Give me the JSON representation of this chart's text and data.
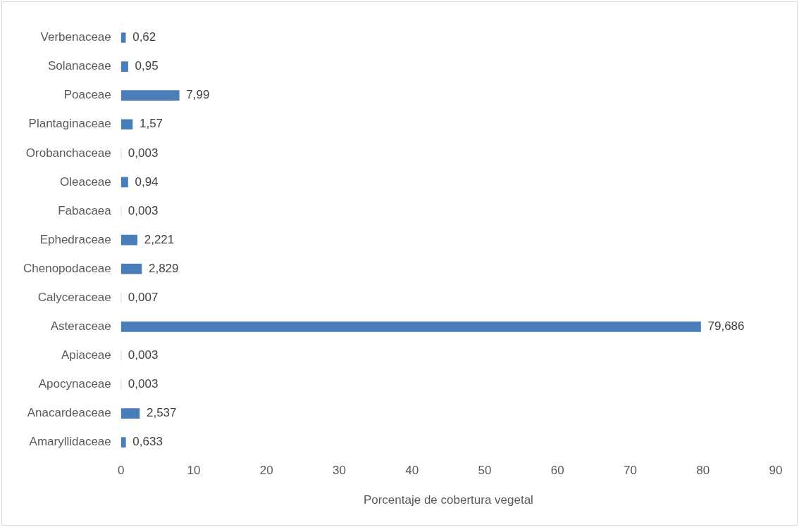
{
  "chart_data": {
    "type": "bar",
    "orientation": "horizontal",
    "xlabel": "Porcentaje de cobertura vegetal",
    "categories": [
      "Verbenaceae",
      "Solanaceae",
      "Poaceae",
      "Plantaginaceae",
      "Orobanchaceae",
      "Oleaceae",
      "Fabacaea",
      "Ephedraceae",
      "Chenopodaceae",
      "Calyceraceae",
      "Asteraceae",
      "Apiaceae",
      "Apocynaceae",
      "Anacardeaceae",
      "Amaryllidaceae"
    ],
    "values": [
      0.62,
      0.95,
      7.99,
      1.57,
      0.003,
      0.94,
      0.003,
      2.221,
      2.829,
      0.007,
      79.686,
      0.003,
      0.003,
      2.537,
      0.633
    ],
    "value_labels": [
      "0,62",
      "0,95",
      "7,99",
      "1,57",
      "0,003",
      "0,94",
      "0,003",
      "2,221",
      "2,829",
      "0,007",
      "79,686",
      "0,003",
      "0,003",
      "2,537",
      "0,633"
    ],
    "color": "#4a7ebb",
    "xlim": [
      0,
      90
    ],
    "xticks": [
      0,
      10,
      20,
      30,
      40,
      50,
      60,
      70,
      80,
      90
    ],
    "grid": false,
    "legend": false
  }
}
